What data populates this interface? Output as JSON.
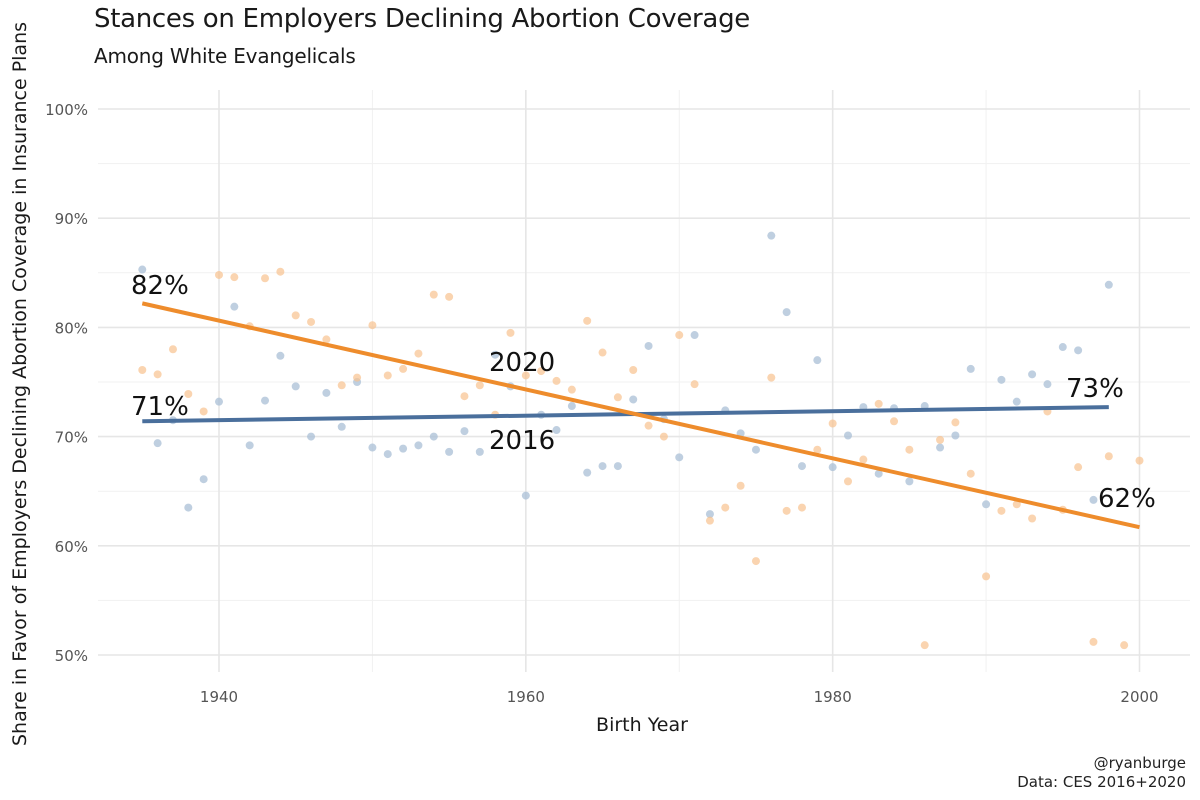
{
  "header": {
    "title": "Stances on Employers Declining Abortion Coverage",
    "subtitle": "Among White Evangelicals"
  },
  "caption": {
    "line1": "@ryanburge",
    "line2": "Data: CES 2016+2020"
  },
  "colors": {
    "s2016": "#4a6f9c",
    "s2020": "#ee8c2c",
    "pt2016": "#a9bfd6",
    "pt2020": "#f8c28f",
    "grid": "#e6e6e6"
  },
  "chart_data": {
    "type": "scatter",
    "title": "Stances on Employers Declining Abortion Coverage",
    "subtitle": "Among White Evangelicals",
    "xlabel": "Birth Year",
    "ylabel": "Share in Favor of Employers Declining Abortion Coverage in Insurance Plans",
    "xlim": [
      1932,
      2003
    ],
    "ylim": [
      49,
      101
    ],
    "x_ticks": [
      1940,
      1960,
      1980,
      2000
    ],
    "y_ticks": [
      50,
      60,
      70,
      80,
      90,
      100
    ],
    "y_tick_labels": [
      "50%",
      "60%",
      "70%",
      "80%",
      "90%",
      "100%"
    ],
    "grid": true,
    "legend": "none",
    "series": [
      {
        "name": "2016",
        "points": [
          [
            1935,
            85.3
          ],
          [
            1936,
            69.4
          ],
          [
            1937,
            71.5
          ],
          [
            1938,
            63.5
          ],
          [
            1939,
            66.1
          ],
          [
            1940,
            73.2
          ],
          [
            1941,
            81.9
          ],
          [
            1942,
            69.2
          ],
          [
            1943,
            73.3
          ],
          [
            1944,
            77.4
          ],
          [
            1945,
            74.6
          ],
          [
            1946,
            70.0
          ],
          [
            1947,
            74.0
          ],
          [
            1948,
            70.9
          ],
          [
            1949,
            75.0
          ],
          [
            1950,
            69.0
          ],
          [
            1951,
            68.4
          ],
          [
            1952,
            68.9
          ],
          [
            1953,
            69.2
          ],
          [
            1954,
            70.0
          ],
          [
            1955,
            68.6
          ],
          [
            1956,
            70.5
          ],
          [
            1957,
            68.6
          ],
          [
            1958,
            77.5
          ],
          [
            1959,
            74.6
          ],
          [
            1960,
            64.6
          ],
          [
            1961,
            72.0
          ],
          [
            1962,
            70.6
          ],
          [
            1963,
            72.8
          ],
          [
            1964,
            66.7
          ],
          [
            1965,
            67.3
          ],
          [
            1966,
            67.3
          ],
          [
            1967,
            73.4
          ],
          [
            1968,
            78.3
          ],
          [
            1969,
            71.6
          ],
          [
            1970,
            68.1
          ],
          [
            1971,
            79.3
          ],
          [
            1972,
            62.9
          ],
          [
            1973,
            72.4
          ],
          [
            1974,
            70.3
          ],
          [
            1975,
            68.8
          ],
          [
            1976,
            88.4
          ],
          [
            1977,
            81.4
          ],
          [
            1978,
            67.3
          ],
          [
            1979,
            77.0
          ],
          [
            1980,
            67.2
          ],
          [
            1981,
            70.1
          ],
          [
            1982,
            72.7
          ],
          [
            1983,
            66.6
          ],
          [
            1984,
            72.6
          ],
          [
            1985,
            65.9
          ],
          [
            1986,
            72.8
          ],
          [
            1987,
            69.0
          ],
          [
            1988,
            70.1
          ],
          [
            1989,
            76.2
          ],
          [
            1990,
            63.8
          ],
          [
            1991,
            75.2
          ],
          [
            1992,
            73.2
          ],
          [
            1993,
            75.7
          ],
          [
            1994,
            74.8
          ],
          [
            1995,
            78.2
          ],
          [
            1996,
            77.9
          ],
          [
            1997,
            64.2
          ],
          [
            1998,
            83.9
          ]
        ],
        "trend": [
          [
            1935,
            71.4
          ],
          [
            1998,
            72.7
          ]
        ],
        "start_label": "71%",
        "end_label": "73%",
        "line_label": "2016"
      },
      {
        "name": "2020",
        "points": [
          [
            1935,
            76.1
          ],
          [
            1936,
            75.7
          ],
          [
            1937,
            78.0
          ],
          [
            1938,
            73.9
          ],
          [
            1939,
            72.3
          ],
          [
            1940,
            84.8
          ],
          [
            1941,
            84.6
          ],
          [
            1942,
            80.1
          ],
          [
            1943,
            84.5
          ],
          [
            1944,
            85.1
          ],
          [
            1945,
            81.1
          ],
          [
            1946,
            80.5
          ],
          [
            1947,
            78.9
          ],
          [
            1948,
            74.7
          ],
          [
            1949,
            75.4
          ],
          [
            1950,
            80.2
          ],
          [
            1951,
            75.6
          ],
          [
            1952,
            76.2
          ],
          [
            1953,
            77.6
          ],
          [
            1954,
            83.0
          ],
          [
            1955,
            82.8
          ],
          [
            1956,
            73.7
          ],
          [
            1957,
            74.7
          ],
          [
            1958,
            72.0
          ],
          [
            1959,
            79.5
          ],
          [
            1960,
            75.6
          ],
          [
            1961,
            76.0
          ],
          [
            1962,
            75.1
          ],
          [
            1963,
            74.3
          ],
          [
            1964,
            80.6
          ],
          [
            1965,
            77.7
          ],
          [
            1966,
            73.6
          ],
          [
            1967,
            76.1
          ],
          [
            1968,
            71.0
          ],
          [
            1969,
            70.0
          ],
          [
            1970,
            79.3
          ],
          [
            1971,
            74.8
          ],
          [
            1972,
            62.3
          ],
          [
            1973,
            63.5
          ],
          [
            1974,
            65.5
          ],
          [
            1975,
            58.6
          ],
          [
            1976,
            75.4
          ],
          [
            1977,
            63.2
          ],
          [
            1978,
            63.5
          ],
          [
            1979,
            68.8
          ],
          [
            1980,
            71.2
          ],
          [
            1981,
            65.9
          ],
          [
            1982,
            67.9
          ],
          [
            1983,
            73.0
          ],
          [
            1984,
            71.4
          ],
          [
            1985,
            68.8
          ],
          [
            1986,
            50.9
          ],
          [
            1987,
            69.7
          ],
          [
            1988,
            71.3
          ],
          [
            1989,
            66.6
          ],
          [
            1990,
            57.2
          ],
          [
            1991,
            63.2
          ],
          [
            1992,
            63.8
          ],
          [
            1993,
            62.5
          ],
          [
            1994,
            72.3
          ],
          [
            1995,
            63.3
          ],
          [
            1996,
            67.2
          ],
          [
            1997,
            51.2
          ],
          [
            1998,
            68.2
          ],
          [
            1999,
            50.9
          ],
          [
            2000,
            67.8
          ]
        ],
        "trend": [
          [
            1935,
            82.2
          ],
          [
            2000,
            61.7
          ]
        ],
        "start_label": "82%",
        "end_label": "62%",
        "line_label": "2020"
      }
    ]
  }
}
